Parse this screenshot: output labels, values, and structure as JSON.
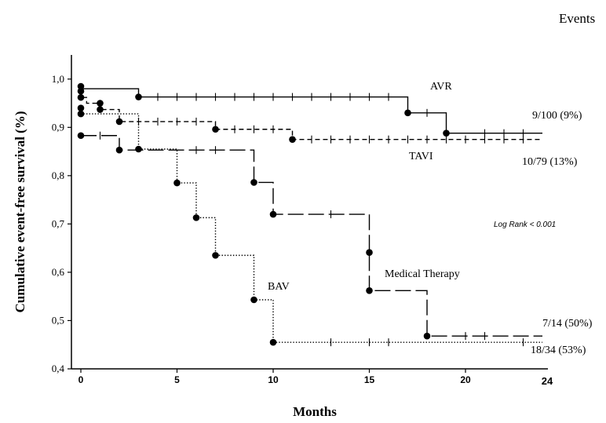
{
  "chart_data": {
    "type": "line",
    "title": "",
    "xlabel": "Months",
    "ylabel": "Cumulative event-free survival (%)",
    "xlim": [
      -0.5,
      24.5
    ],
    "ylim": [
      0.4,
      1.05
    ],
    "x_ticks": [
      0,
      5,
      10,
      15,
      20
    ],
    "x_tick_labels": [
      "0",
      "5",
      "10",
      "15",
      "20"
    ],
    "x_end_label": "24",
    "y_ticks": [
      0.4,
      0.5,
      0.6,
      0.7,
      0.8,
      0.9,
      1.0
    ],
    "y_tick_labels": [
      "0,4",
      "0,5",
      "0,6",
      "0,7",
      "0,8",
      "0,9",
      "1,0"
    ],
    "events_header": "Events",
    "annotation": "Log Rank < 0.001",
    "grid": false,
    "series": [
      {
        "name": "AVR",
        "style": "solid",
        "events_text": "9/100 (9%)",
        "steps": [
          [
            0,
            0.985
          ],
          [
            0,
            0.98
          ],
          [
            3,
            0.963
          ],
          [
            17,
            0.93
          ],
          [
            19,
            0.888
          ],
          [
            24,
            0.888
          ]
        ],
        "events": [
          [
            0,
            0.985
          ],
          [
            3,
            0.963
          ],
          [
            17,
            0.93
          ],
          [
            19,
            0.888
          ]
        ],
        "censors": [
          4,
          5,
          6,
          7,
          8,
          9,
          10,
          11,
          12,
          13,
          14,
          15,
          16,
          18,
          21,
          22,
          23
        ]
      },
      {
        "name": "TAVI",
        "style": "dashed",
        "events_text": "10/79 (13%)",
        "steps": [
          [
            0,
            0.975
          ],
          [
            0,
            0.962
          ],
          [
            0.3,
            0.95
          ],
          [
            1,
            0.937
          ],
          [
            2,
            0.912
          ],
          [
            7,
            0.896
          ],
          [
            11,
            0.875
          ],
          [
            24,
            0.875
          ]
        ],
        "events": [
          [
            0,
            0.975
          ],
          [
            0,
            0.962
          ],
          [
            1,
            0.937
          ],
          [
            2,
            0.912
          ],
          [
            7,
            0.896
          ],
          [
            11,
            0.875
          ]
        ],
        "censors": [
          3,
          4,
          5,
          6,
          8,
          9,
          10,
          12,
          13,
          14,
          15,
          16,
          17,
          18,
          19,
          20,
          21,
          22,
          23
        ]
      },
      {
        "name": "BAV",
        "style": "dotted",
        "events_text": "18/34 (53%)",
        "steps": [
          [
            0,
            0.94
          ],
          [
            0,
            0.928
          ],
          [
            3,
            0.855
          ],
          [
            5,
            0.785
          ],
          [
            6,
            0.713
          ],
          [
            7,
            0.635
          ],
          [
            9,
            0.543
          ],
          [
            10,
            0.455
          ],
          [
            24,
            0.455
          ]
        ],
        "events": [
          [
            0,
            0.94
          ],
          [
            0,
            0.928
          ],
          [
            3,
            0.855
          ],
          [
            5,
            0.785
          ],
          [
            6,
            0.713
          ],
          [
            7,
            0.635
          ],
          [
            9,
            0.543
          ],
          [
            10,
            0.455
          ]
        ],
        "censors": [
          13,
          15,
          16,
          23
        ]
      },
      {
        "name": "Medical Therapy",
        "style": "longdash",
        "events_text": "7/14 (50%)",
        "steps": [
          [
            0,
            0.883
          ],
          [
            2,
            0.853
          ],
          [
            9,
            0.786
          ],
          [
            10,
            0.72
          ],
          [
            15,
            0.641
          ],
          [
            15,
            0.562
          ],
          [
            18,
            0.468
          ],
          [
            24,
            0.468
          ]
        ],
        "events": [
          [
            0,
            0.883
          ],
          [
            1,
            0.95
          ],
          [
            2,
            0.853
          ],
          [
            9,
            0.786
          ],
          [
            10,
            0.72
          ],
          [
            15,
            0.641
          ],
          [
            15,
            0.562
          ],
          [
            18,
            0.468
          ]
        ],
        "censors": [
          1,
          6,
          7,
          13,
          20,
          21
        ]
      }
    ]
  }
}
